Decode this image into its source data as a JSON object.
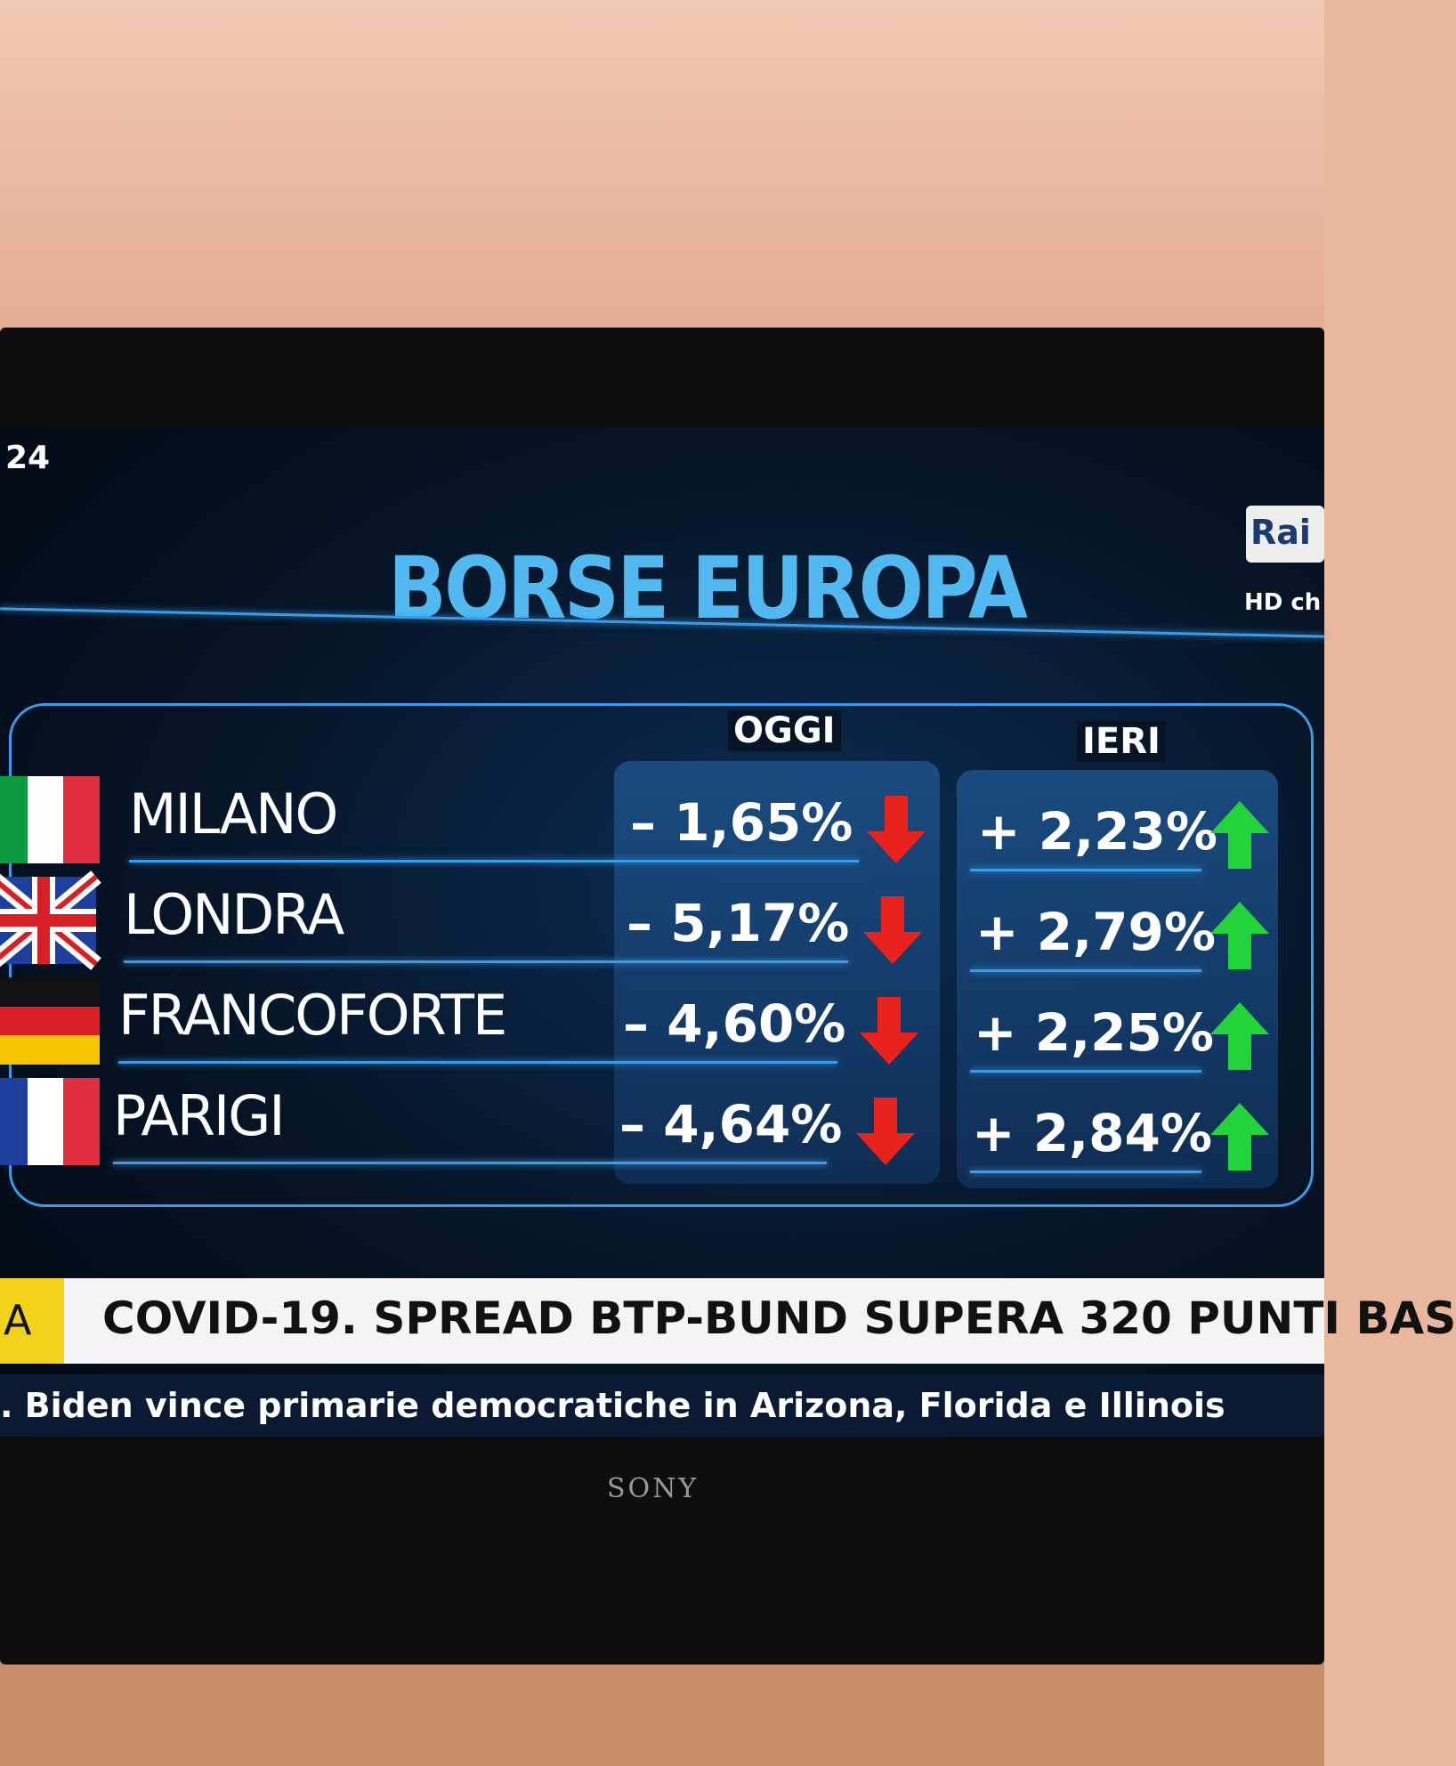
{
  "channel": {
    "logo_fragment": "24",
    "rai_logo": "Rai",
    "hd": "HD ch"
  },
  "title": "BORSE EUROPA",
  "table": {
    "headers": [
      "OGGI",
      "IERI"
    ],
    "rows": [
      [
        "MILANO",
        "– 1,65%",
        "+ 2,23%"
      ],
      [
        "LONDRA",
        "– 5,17%",
        "+ 2,79%"
      ],
      [
        "FRANCOFORTE",
        "– 4,60%",
        "+ 2,25%"
      ],
      [
        "PARIGI",
        "– 4,64%",
        "+ 2,84%"
      ]
    ]
  },
  "ticker": {
    "label": "A",
    "headline": "COVID-19. SPREAD BTP-BUND SUPERA 320 PUNTI BAS",
    "crawl": ". Biden vince primarie democratiche in Arizona, Florida e Illinois"
  },
  "tv_brand": "SONY"
}
